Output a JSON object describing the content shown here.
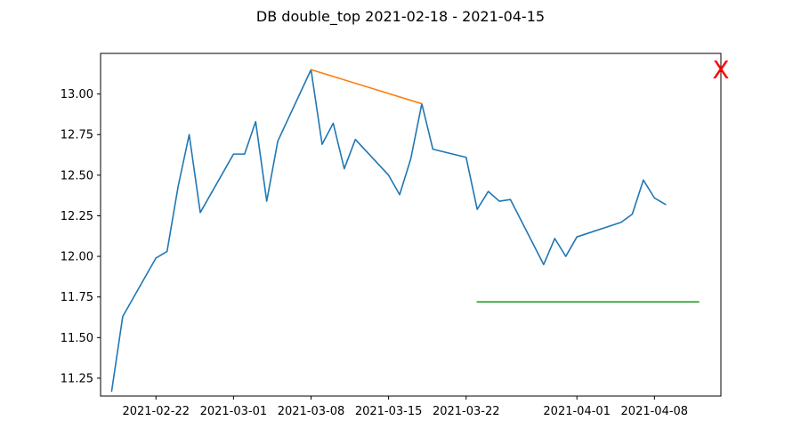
{
  "chart_data": {
    "type": "line",
    "title": "DB double_top 2021-02-18 - 2021-04-15",
    "xlabel": "",
    "ylabel": "",
    "x_type": "date",
    "xlim": [
      "2021-02-17",
      "2021-04-14"
    ],
    "ylim": [
      11.14,
      13.25
    ],
    "grid": false,
    "x_ticks": [
      "2021-02-22",
      "2021-03-01",
      "2021-03-08",
      "2021-03-15",
      "2021-03-22",
      "2021-04-01",
      "2021-04-08"
    ],
    "y_ticks": [
      11.25,
      11.5,
      11.75,
      12.0,
      12.25,
      12.5,
      12.75,
      13.0
    ],
    "series": [
      {
        "color": "#1f77b4",
        "points": [
          {
            "x": "2021-02-18",
            "y": 11.17
          },
          {
            "x": "2021-02-19",
            "y": 11.63
          },
          {
            "x": "2021-02-22",
            "y": 11.99
          },
          {
            "x": "2021-02-23",
            "y": 12.03
          },
          {
            "x": "2021-02-24",
            "y": 12.43
          },
          {
            "x": "2021-02-25",
            "y": 12.75
          },
          {
            "x": "2021-02-26",
            "y": 12.27
          },
          {
            "x": "2021-03-01",
            "y": 12.63
          },
          {
            "x": "2021-03-02",
            "y": 12.63
          },
          {
            "x": "2021-03-03",
            "y": 12.83
          },
          {
            "x": "2021-03-04",
            "y": 12.34
          },
          {
            "x": "2021-03-05",
            "y": 12.71
          },
          {
            "x": "2021-03-08",
            "y": 13.15
          },
          {
            "x": "2021-03-09",
            "y": 12.69
          },
          {
            "x": "2021-03-10",
            "y": 12.82
          },
          {
            "x": "2021-03-11",
            "y": 12.54
          },
          {
            "x": "2021-03-12",
            "y": 12.72
          },
          {
            "x": "2021-03-15",
            "y": 12.5
          },
          {
            "x": "2021-03-16",
            "y": 12.38
          },
          {
            "x": "2021-03-17",
            "y": 12.6
          },
          {
            "x": "2021-03-18",
            "y": 12.94
          },
          {
            "x": "2021-03-19",
            "y": 12.66
          },
          {
            "x": "2021-03-22",
            "y": 12.61
          },
          {
            "x": "2021-03-23",
            "y": 12.29
          },
          {
            "x": "2021-03-24",
            "y": 12.4
          },
          {
            "x": "2021-03-25",
            "y": 12.34
          },
          {
            "x": "2021-03-26",
            "y": 12.35
          },
          {
            "x": "2021-03-29",
            "y": 11.95
          },
          {
            "x": "2021-03-30",
            "y": 12.11
          },
          {
            "x": "2021-03-31",
            "y": 12.0
          },
          {
            "x": "2021-04-01",
            "y": 12.12
          },
          {
            "x": "2021-04-05",
            "y": 12.21
          },
          {
            "x": "2021-04-06",
            "y": 12.26
          },
          {
            "x": "2021-04-07",
            "y": 12.47
          },
          {
            "x": "2021-04-08",
            "y": 12.36
          },
          {
            "x": "2021-04-09",
            "y": 12.32
          }
        ]
      },
      {
        "color": "#ff7f0e",
        "points": [
          {
            "x": "2021-03-08",
            "y": 13.15
          },
          {
            "x": "2021-03-18",
            "y": 12.94
          }
        ]
      },
      {
        "color": "#2ca02c",
        "points": [
          {
            "x": "2021-03-23",
            "y": 11.72
          },
          {
            "x": "2021-04-12",
            "y": 11.72
          }
        ]
      }
    ],
    "annotations": [
      {
        "text": "X",
        "color": "#ff0000",
        "x": "2021-04-14",
        "y": 13.15
      }
    ]
  }
}
